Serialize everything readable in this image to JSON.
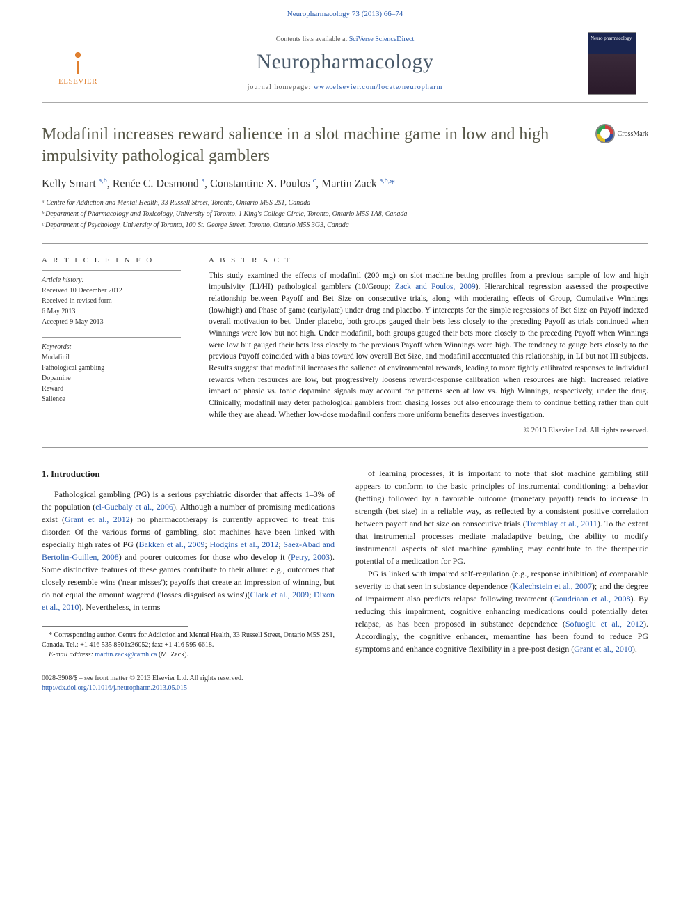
{
  "colors": {
    "link": "#2255aa",
    "title_gray": "#585848",
    "journal_gray": "#4a5a6a",
    "text": "#222222",
    "elsevier_orange": "#e08030"
  },
  "header": {
    "top_ref": "Neuropharmacology 73 (2013) 66–74",
    "contents_prefix": "Contents lists available at ",
    "contents_link": "SciVerse ScienceDirect",
    "journal_name": "Neuropharmacology",
    "homepage_prefix": "journal homepage: ",
    "homepage_url": "www.elsevier.com/locate/neuropharm",
    "publisher": "ELSEVIER",
    "cover_text": "Neuro pharmacology"
  },
  "crossmark_label": "CrossMark",
  "article": {
    "title": "Modafinil increases reward salience in a slot machine game in low and high impulsivity pathological gamblers",
    "authors_html": "Kelly Smart <sup>a,b</sup>, Renée C. Desmond <sup>a</sup>, Constantine X. Poulos <sup>c</sup>, Martin Zack <sup>a,b,</sup><span class='star'>*</span>",
    "affiliations": [
      "ᵃ Centre for Addiction and Mental Health, 33 Russell Street, Toronto, Ontario M5S 2S1, Canada",
      "ᵇ Department of Pharmacology and Toxicology, University of Toronto, 1 King's College Circle, Toronto, Ontario M5S 1A8, Canada",
      "ᶜ Department of Psychology, University of Toronto, 100 St. George Street, Toronto, Ontario M5S 3G3, Canada"
    ]
  },
  "info": {
    "header": "A R T I C L E   I N F O",
    "history_label": "Article history:",
    "history": [
      "Received 10 December 2012",
      "Received in revised form",
      "6 May 2013",
      "Accepted 9 May 2013"
    ],
    "keywords_label": "Keywords:",
    "keywords": [
      "Modafinil",
      "Pathological gambling",
      "Dopamine",
      "Reward",
      "Salience"
    ]
  },
  "abstract": {
    "header": "A B S T R A C T",
    "text_parts": [
      "This study examined the effects of modafinil (200 mg) on slot machine betting profiles from a previous sample of low and high impulsivity (LI/HI) pathological gamblers (10/Group; ",
      "Zack and Poulos, 2009",
      "). Hierarchical regression assessed the prospective relationship between Payoff and Bet Size on consecutive trials, along with moderating effects of Group, Cumulative Winnings (low/high) and Phase of game (early/late) under drug and placebo. Y intercepts for the simple regressions of Bet Size on Payoff indexed overall motivation to bet. Under placebo, both groups gauged their bets less closely to the preceding Payoff as trials continued when Winnings were low but not high. Under modafinil, both groups gauged their bets more closely to the preceding Payoff when Winnings were low but gauged their bets less closely to the previous Payoff when Winnings were high. The tendency to gauge bets closely to the previous Payoff coincided with a bias toward low overall Bet Size, and modafinil accentuated this relationship, in LI but not HI subjects. Results suggest that modafinil increases the salience of environmental rewards, leading to more tightly calibrated responses to individual rewards when resources are low, but progressively loosens reward-response calibration when resources are high. Increased relative impact of phasic vs. tonic dopamine signals may account for patterns seen at low vs. high Winnings, respectively, under the drug. Clinically, modafinil may deter pathological gamblers from chasing losses but also encourage them to continue betting rather than quit while they are ahead. Whether low-dose modafinil confers more uniform benefits deserves investigation."
    ],
    "copyright": "© 2013 Elsevier Ltd. All rights reserved."
  },
  "body": {
    "section_heading": "1. Introduction",
    "col1_p1_parts": [
      "Pathological gambling (PG) is a serious psychiatric disorder that affects 1–3% of the population (",
      "el-Guebaly et al., 2006",
      "). Although a number of promising medications exist (",
      "Grant et al., 2012",
      ") no pharmacotherapy is currently approved to treat this disorder. Of the various forms of gambling, slot machines have been linked with especially high rates of PG (",
      "Bakken et al., 2009",
      "; ",
      "Hodgins et al., 2012",
      "; ",
      "Saez-Abad and Bertolin-Guillen, 2008",
      ") and poorer outcomes for those who develop it (",
      "Petry, 2003",
      "). Some distinctive features of these games contribute to their allure: e.g., outcomes that closely resemble wins ('near misses'); payoffs that create an impression of winning, but do not equal the amount wagered ('losses disguised as wins')(",
      "Clark et al., 2009",
      "; ",
      "Dixon et al., 2010",
      "). Nevertheless, in terms"
    ],
    "col2_p1_parts": [
      "of learning processes, it is important to note that slot machine gambling still appears to conform to the basic principles of instrumental conditioning: a behavior (betting) followed by a favorable outcome (monetary payoff) tends to increase in strength (bet size) in a reliable way, as reflected by a consistent positive correlation between payoff and bet size on consecutive trials (",
      "Tremblay et al., 2011",
      "). To the extent that instrumental processes mediate maladaptive betting, the ability to modify instrumental aspects of slot machine gambling may contribute to the therapeutic potential of a medication for PG."
    ],
    "col2_p2_parts": [
      "PG is linked with impaired self-regulation (e.g., response inhibition) of comparable severity to that seen in substance dependence (",
      "Kalechstein et al., 2007",
      "); and the degree of impairment also predicts relapse following treatment (",
      "Goudriaan et al., 2008",
      "). By reducing this impairment, cognitive enhancing medications could potentially deter relapse, as has been proposed in substance dependence (",
      "Sofuoglu et al., 2012",
      "). Accordingly, the cognitive enhancer, memantine has been found to reduce PG symptoms and enhance cognitive flexibility in a pre-post design (",
      "Grant et al., 2010",
      ")."
    ]
  },
  "footnote": {
    "corr_parts": [
      "* Corresponding author. Centre for Addiction and Mental Health, 33 Russell Street, Ontario M5S 2S1, Canada. Tel.: +1 416 535 8501x36052; fax: +1 416 595 6618."
    ],
    "email_label": "E-mail address: ",
    "email": "martin.zack@camh.ca",
    "email_suffix": " (M. Zack)."
  },
  "footer": {
    "issn_line": "0028-3908/$ – see front matter © 2013 Elsevier Ltd. All rights reserved.",
    "doi_url": "http://dx.doi.org/10.1016/j.neuropharm.2013.05.015"
  }
}
